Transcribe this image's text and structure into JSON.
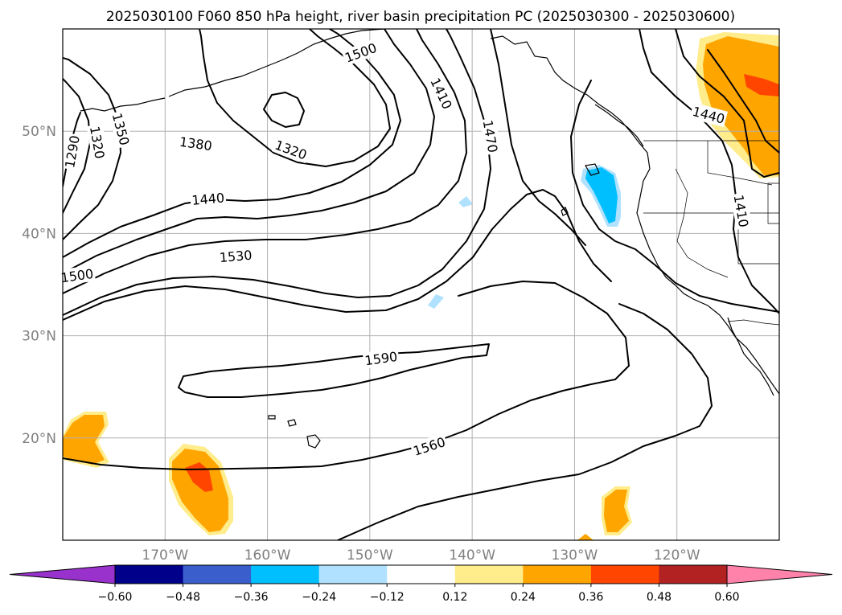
{
  "title": "2025030100 F060 850 hPa height, river basin precipitation PC (2025030300 - 2025030600)",
  "map": {
    "lon_range": [
      -180,
      -110
    ],
    "lat_range": [
      10,
      60
    ],
    "lon_ticks": [
      {
        "lon": -170,
        "label": "170°W"
      },
      {
        "lon": -160,
        "label": "160°W"
      },
      {
        "lon": -150,
        "label": "150°W"
      },
      {
        "lon": -140,
        "label": "140°W"
      },
      {
        "lon": -130,
        "label": "130°W"
      },
      {
        "lon": -120,
        "label": "120°W"
      }
    ],
    "lat_ticks": [
      {
        "lat": 50,
        "label": "50°N"
      },
      {
        "lat": 40,
        "label": "40°N"
      },
      {
        "lat": 30,
        "label": "30°N"
      },
      {
        "lat": 20,
        "label": "20°N"
      }
    ],
    "grid": true
  },
  "contour_labels": [
    {
      "text": "1290",
      "lon": -179.1,
      "lat": 48.0,
      "rot": -80
    },
    {
      "text": "1320",
      "lon": -176.6,
      "lat": 48.9,
      "rot": 80
    },
    {
      "text": "1350",
      "lon": -174.3,
      "lat": 50.2,
      "rot": 75
    },
    {
      "text": "1380",
      "lon": -167.0,
      "lat": 48.8,
      "rot": 8
    },
    {
      "text": "1440",
      "lon": -165.8,
      "lat": 43.4,
      "rot": -5
    },
    {
      "text": "1320",
      "lon": -157.7,
      "lat": 48.2,
      "rot": 20
    },
    {
      "text": "1500",
      "lon": -178.6,
      "lat": 35.9,
      "rot": -8
    },
    {
      "text": "1530",
      "lon": -163.1,
      "lat": 37.8,
      "rot": -5
    },
    {
      "text": "1410",
      "lon": -143.0,
      "lat": 53.7,
      "rot": 65
    },
    {
      "text": "1470",
      "lon": -138.2,
      "lat": 49.5,
      "rot": 80
    },
    {
      "text": "1500",
      "lon": -150.9,
      "lat": 57.7,
      "rot": -20
    },
    {
      "text": "1590",
      "lon": -148.9,
      "lat": 27.8,
      "rot": -8
    },
    {
      "text": "1560",
      "lon": -144.2,
      "lat": 19.2,
      "rot": -18
    },
    {
      "text": "1440",
      "lon": -116.9,
      "lat": 51.6,
      "rot": 15
    },
    {
      "text": "1410",
      "lon": -113.7,
      "lat": 42.2,
      "rot": 80
    }
  ],
  "colorbar": {
    "colors": [
      "#9932cc",
      "#00008b",
      "#3a5fcd",
      "#00bfff",
      "#b0e2ff",
      "#ffffff",
      "#ffec8b",
      "#ffa500",
      "#ff4500",
      "#b22222",
      "#ff82ab"
    ],
    "levels": [
      -0.6,
      -0.48,
      -0.36,
      -0.24,
      -0.12,
      0.12,
      0.24,
      0.36,
      0.48,
      0.6
    ],
    "tick_labels": [
      "−0.60",
      "−0.48",
      "−0.36",
      "−0.24",
      "−0.12",
      "0.12",
      "0.24",
      "0.36",
      "0.48",
      "0.60"
    ],
    "extend": "both"
  }
}
